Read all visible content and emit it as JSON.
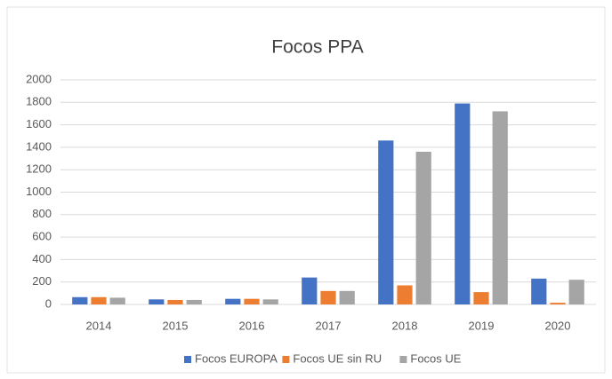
{
  "chart_data": {
    "type": "bar",
    "title": "Focos PPA",
    "categories": [
      "2014",
      "2015",
      "2016",
      "2017",
      "2018",
      "2019",
      "2020"
    ],
    "series": [
      {
        "name": "Focos EUROPA",
        "color": "#4472c4",
        "values": [
          65,
          45,
          50,
          240,
          1460,
          1790,
          230
        ]
      },
      {
        "name": "Focos UE sin RU",
        "color": "#ed7d31",
        "values": [
          65,
          40,
          50,
          120,
          170,
          110,
          15
        ]
      },
      {
        "name": "Focos UE",
        "color": "#a5a5a5",
        "values": [
          60,
          40,
          45,
          120,
          1360,
          1720,
          220
        ]
      }
    ],
    "ylim": [
      0,
      2000
    ],
    "yticks": [
      0,
      200,
      400,
      600,
      800,
      1000,
      1200,
      1400,
      1600,
      1800,
      2000
    ],
    "grid": true,
    "legend": "bottom"
  }
}
